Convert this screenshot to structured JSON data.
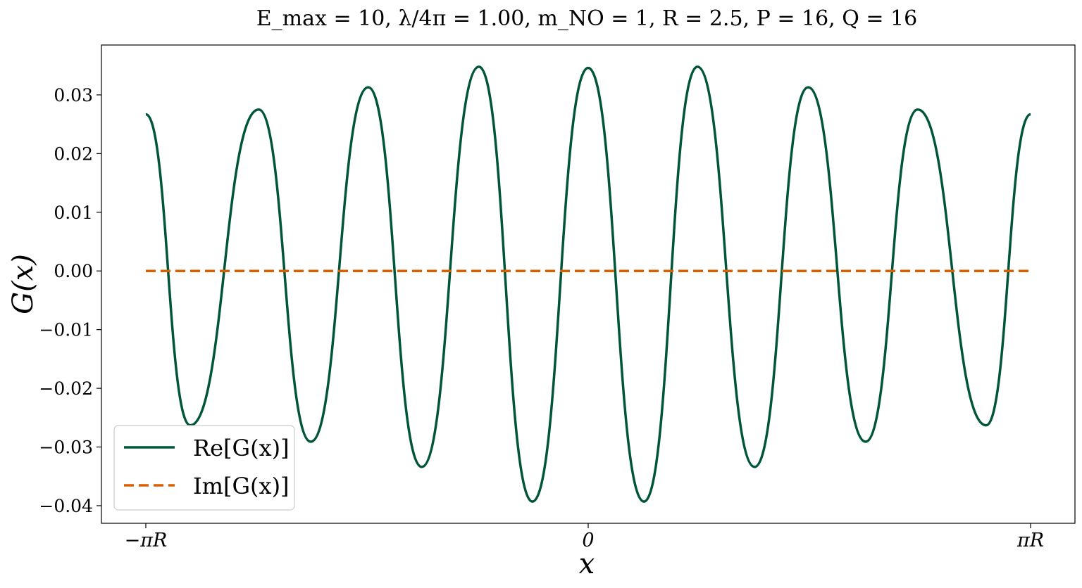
{
  "chart_data": {
    "type": "line",
    "title": "E_max = 10,   λ/4π = 1.00,   m_NO = 1,   R = 2.5,   P = 16,   Q = 16",
    "xlabel": "x",
    "ylabel": "G(x)",
    "xlim": [
      -7.854,
      7.854
    ],
    "ylim": [
      -0.043,
      0.0385
    ],
    "x_ticks": [
      {
        "value": -7.854,
        "label": "−πR"
      },
      {
        "value": 0,
        "label": "0"
      },
      {
        "value": 7.854,
        "label": "πR"
      }
    ],
    "y_ticks": [
      {
        "value": 0.03,
        "label": "0.03"
      },
      {
        "value": 0.02,
        "label": "0.02"
      },
      {
        "value": 0.01,
        "label": "0.01"
      },
      {
        "value": 0.0,
        "label": "0.00"
      },
      {
        "value": -0.01,
        "label": "−0.01"
      },
      {
        "value": -0.02,
        "label": "−0.02"
      },
      {
        "value": -0.03,
        "label": "−0.03"
      },
      {
        "value": -0.04,
        "label": "−0.04"
      }
    ],
    "grid": false,
    "legend_position": "lower-left",
    "series": [
      {
        "name": "Re[G(x)]",
        "color": "#00553a",
        "style": "solid",
        "points": [
          [
            -7.854,
            0.0267
          ],
          [
            -7.065,
            -0.0263
          ],
          [
            -5.85,
            0.0275
          ],
          [
            -4.925,
            -0.0291
          ],
          [
            -3.905,
            0.0313
          ],
          [
            -2.955,
            -0.0334
          ],
          [
            -1.94,
            0.0348
          ],
          [
            -0.99,
            -0.0393
          ],
          [
            0.0,
            0.0346
          ],
          [
            0.99,
            -0.0393
          ],
          [
            1.94,
            0.0348
          ],
          [
            2.955,
            -0.0334
          ],
          [
            3.905,
            0.0313
          ],
          [
            4.925,
            -0.0291
          ],
          [
            5.85,
            0.0275
          ],
          [
            7.065,
            -0.0263
          ],
          [
            7.854,
            0.0267
          ]
        ]
      },
      {
        "name": "Im[G(x)]",
        "color": "#d95f02",
        "style": "dashed",
        "points": [
          [
            -7.854,
            0.0
          ],
          [
            7.854,
            0.0
          ]
        ]
      }
    ]
  }
}
